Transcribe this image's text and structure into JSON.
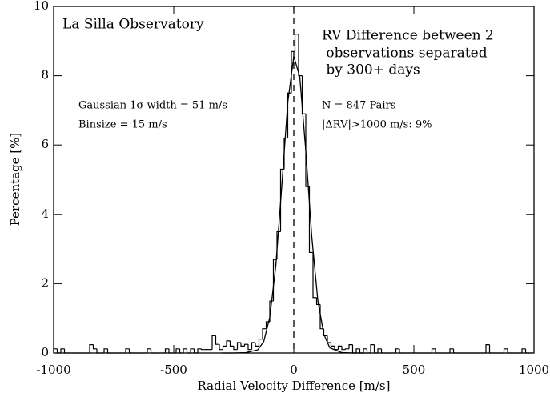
{
  "chart_data": {
    "type": "histogram",
    "xlabel": "Radial Velocity Difference [m/s]",
    "ylabel": "Percentage [%]",
    "annotations": {
      "observatory": "La Silla Observatory",
      "description": [
        "RV Difference between 2",
        " observations separated",
        " by 300+ days"
      ],
      "gaussian": "Gaussian 1σ width = 51 m/s",
      "binsize": "Binsize = 15 m/s",
      "pairs": "N = 847 Pairs",
      "outliers": "|ΔRV|>1000 m/s: 9%"
    },
    "bins": [
      -1000,
      -985,
      -970,
      -955,
      -940,
      -925,
      -910,
      -895,
      -880,
      -865,
      -850,
      -835,
      -820,
      -805,
      -790,
      -775,
      -760,
      -745,
      -730,
      -715,
      -700,
      -685,
      -670,
      -655,
      -640,
      -625,
      -610,
      -595,
      -580,
      -565,
      -550,
      -535,
      -520,
      -505,
      -490,
      -475,
      -460,
      -445,
      -430,
      -415,
      -400,
      -385,
      -370,
      -355,
      -340,
      -325,
      -310,
      -295,
      -280,
      -265,
      -250,
      -235,
      -220,
      -205,
      -190,
      -175,
      -160,
      -145,
      -130,
      -115,
      -100,
      -85,
      -70,
      -55,
      -40,
      -25,
      -10,
      5,
      20,
      35,
      50,
      65,
      80,
      95,
      110,
      125,
      140,
      155,
      170,
      185,
      200,
      215,
      230,
      245,
      260,
      275,
      290,
      305,
      320,
      335,
      350,
      365,
      380,
      395,
      410,
      425,
      440,
      455,
      470,
      485,
      500,
      515,
      530,
      545,
      560,
      575,
      590,
      605,
      620,
      635,
      650,
      665,
      680,
      695,
      710,
      725,
      740,
      755,
      770,
      785,
      800,
      815,
      830,
      845,
      860,
      875,
      890,
      905,
      920,
      935,
      950,
      965,
      980,
      995
    ],
    "values": [
      0.12,
      0,
      0.12,
      0,
      0,
      0,
      0,
      0,
      0,
      0,
      0.24,
      0.12,
      0,
      0,
      0.12,
      0,
      0,
      0,
      0,
      0,
      0.12,
      0,
      0,
      0,
      0,
      0,
      0.12,
      0,
      0,
      0,
      0,
      0.12,
      0,
      0,
      0.12,
      0,
      0.12,
      0,
      0.12,
      0,
      0.12,
      0.1,
      0.1,
      0.1,
      0.5,
      0.25,
      0.1,
      0.2,
      0.35,
      0.2,
      0.1,
      0.3,
      0.2,
      0.25,
      0.1,
      0.3,
      0.2,
      0.4,
      0.7,
      0.9,
      1.5,
      2.7,
      3.5,
      5.3,
      6.2,
      7.5,
      8.7,
      9.2,
      8.0,
      6.9,
      4.8,
      2.9,
      1.6,
      1.4,
      0.7,
      0.5,
      0.3,
      0.2,
      0.1,
      0.2,
      0.1,
      0.12,
      0.24,
      0,
      0.12,
      0,
      0.12,
      0,
      0.24,
      0,
      0.12,
      0,
      0,
      0,
      0,
      0.12,
      0,
      0,
      0,
      0,
      0,
      0,
      0,
      0,
      0,
      0.12,
      0,
      0,
      0,
      0,
      0.12,
      0,
      0,
      0,
      0,
      0,
      0,
      0,
      0,
      0,
      0.24,
      0,
      0,
      0,
      0,
      0.12,
      0,
      0,
      0,
      0,
      0.12,
      0,
      0
    ],
    "color": "#000000",
    "fit": {
      "x": [
        -300,
        -250,
        -200,
        -150,
        -125,
        -100,
        -75,
        -50,
        -25,
        0,
        25,
        50,
        75,
        100,
        125,
        150,
        200,
        250,
        300
      ],
      "values": [
        0,
        0,
        0.01,
        0.09,
        0.33,
        1.03,
        2.51,
        4.81,
        7.23,
        8.56,
        7.96,
        5.83,
        3.35,
        1.52,
        0.54,
        0.15,
        0.01,
        0,
        0
      ],
      "color": "#000000"
    },
    "vline": 0,
    "xlim": [
      -1000,
      1000
    ],
    "ylim": [
      0,
      10
    ],
    "xticks": [
      -1000,
      -500,
      0,
      500,
      1000
    ],
    "yticks": [
      0,
      2,
      4,
      6,
      8,
      10
    ]
  }
}
